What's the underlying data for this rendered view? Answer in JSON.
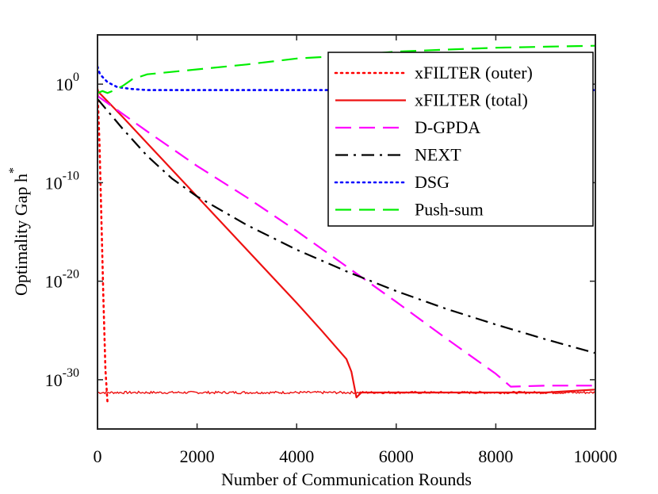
{
  "chart_data": {
    "type": "line",
    "xlabel": "Number of Communication Rounds",
    "ylabel": "Optimality Gap h",
    "ylabel_superscript": "*",
    "yscale": "log",
    "xlim": [
      0,
      10000
    ],
    "ylim_log10": [
      -35,
      5
    ],
    "xticks": [
      {
        "value": 0,
        "label": "0"
      },
      {
        "value": 2000,
        "label": "2000"
      },
      {
        "value": 4000,
        "label": "4000"
      },
      {
        "value": 6000,
        "label": "6000"
      },
      {
        "value": 8000,
        "label": "8000"
      },
      {
        "value": 10000,
        "label": "10000"
      }
    ],
    "yticks": [
      {
        "log10": 0,
        "base": "10",
        "exp": "0"
      },
      {
        "log10": -10,
        "base": "10",
        "exp": "-10"
      },
      {
        "log10": -20,
        "base": "10",
        "exp": "-20"
      },
      {
        "log10": -30,
        "base": "10",
        "exp": "-30"
      }
    ],
    "legend_position": "top-right",
    "series": [
      {
        "name": "xFILTER (outer)",
        "color": "#ff0000",
        "style": "dotted",
        "points": [
          [
            0,
            -0.5
          ],
          [
            40,
            -6
          ],
          [
            80,
            -14
          ],
          [
            120,
            -22
          ],
          [
            160,
            -29
          ],
          [
            200,
            -32.3
          ]
        ]
      },
      {
        "name": "xFILTER (total)",
        "color": "#ee1111",
        "style": "solid",
        "noisy_floor": {
          "from": 0,
          "to": 10000,
          "level": -31.3,
          "amplitude": 0.12
        },
        "points": [
          [
            0,
            -0.5
          ],
          [
            20,
            -0.8
          ],
          [
            500,
            -3.3
          ],
          [
            1000,
            -6.0
          ],
          [
            2000,
            -11.4
          ],
          [
            3000,
            -16.8
          ],
          [
            4000,
            -22.2
          ],
          [
            4500,
            -25.0
          ],
          [
            5000,
            -27.9
          ],
          [
            5100,
            -29.2
          ],
          [
            5200,
            -31.8
          ],
          [
            5300,
            -31.3
          ],
          [
            5500,
            -31.3
          ],
          [
            6000,
            -31.3
          ],
          [
            7000,
            -31.3
          ],
          [
            8000,
            -31.3
          ],
          [
            9000,
            -31.3
          ],
          [
            10000,
            -31.0
          ]
        ]
      },
      {
        "name": "D-GPDA",
        "color": "#ff00ff",
        "style": "dashed",
        "points": [
          [
            0,
            -1.2
          ],
          [
            1000,
            -4.8
          ],
          [
            2000,
            -8.3
          ],
          [
            3000,
            -11.5
          ],
          [
            4000,
            -14.9
          ],
          [
            5000,
            -18.5
          ],
          [
            6000,
            -22.1
          ],
          [
            7000,
            -25.8
          ],
          [
            8000,
            -29.4
          ],
          [
            8300,
            -30.7
          ],
          [
            9000,
            -30.6
          ],
          [
            10000,
            -30.6
          ]
        ]
      },
      {
        "name": "NEXT",
        "color": "#000000",
        "style": "dashdot",
        "points": [
          [
            0,
            -1.5
          ],
          [
            500,
            -4.5
          ],
          [
            1000,
            -7.3
          ],
          [
            1500,
            -9.6
          ],
          [
            2000,
            -11.4
          ],
          [
            3000,
            -14.3
          ],
          [
            4000,
            -16.8
          ],
          [
            5000,
            -19.0
          ],
          [
            6000,
            -21.0
          ],
          [
            7000,
            -22.8
          ],
          [
            8000,
            -24.4
          ],
          [
            9000,
            -25.9
          ],
          [
            10000,
            -27.3
          ]
        ]
      },
      {
        "name": "DSG",
        "color": "#0000ff",
        "style": "dotted",
        "points": [
          [
            0,
            1.8
          ],
          [
            50,
            1.0
          ],
          [
            200,
            0.2
          ],
          [
            400,
            -0.3
          ],
          [
            700,
            -0.5
          ],
          [
            1000,
            -0.6
          ],
          [
            2000,
            -0.6
          ],
          [
            5000,
            -0.6
          ],
          [
            10000,
            -0.6
          ]
        ]
      },
      {
        "name": "Push-sum",
        "color": "#00ee00",
        "style": "dashed",
        "points": [
          [
            0,
            -0.9
          ],
          [
            100,
            -0.7
          ],
          [
            200,
            -0.9
          ],
          [
            300,
            -0.7
          ],
          [
            500,
            -0.2
          ],
          [
            700,
            0.5
          ],
          [
            1000,
            1.0
          ],
          [
            2000,
            1.5
          ],
          [
            3000,
            2.0
          ],
          [
            4000,
            2.6
          ],
          [
            5000,
            2.9
          ],
          [
            6000,
            3.3
          ],
          [
            7000,
            3.5
          ],
          [
            8000,
            3.7
          ],
          [
            9000,
            3.8
          ],
          [
            10000,
            3.9
          ]
        ]
      }
    ]
  }
}
